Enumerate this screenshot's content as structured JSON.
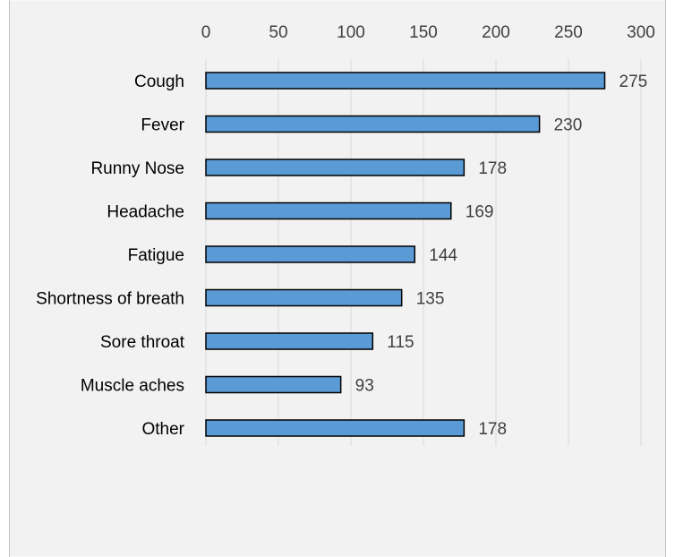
{
  "chart_data": {
    "type": "bar",
    "orientation": "horizontal",
    "title": "",
    "xlabel": "",
    "ylabel": "",
    "categories": [
      "Cough",
      "Fever",
      "Runny Nose",
      "Headache",
      "Fatigue",
      "Shortness of breath",
      "Sore throat",
      "Muscle aches",
      "Other"
    ],
    "values": [
      275,
      230,
      178,
      169,
      144,
      135,
      115,
      93,
      178
    ],
    "xlim": [
      0,
      300
    ],
    "x_ticks": [
      "0",
      "50",
      "100",
      "150",
      "200",
      "250",
      "300"
    ],
    "axis_position": "top",
    "grid": true,
    "legend": "none",
    "data_labels": [
      "275",
      "230",
      "178",
      "169",
      "144",
      "135",
      "115",
      "93",
      "178"
    ],
    "colors": {
      "bar_fill": "#5b9bd5",
      "bar_stroke": "#000000",
      "background": "#f2f2f2",
      "gridline": "#d9d9d9",
      "border": "#bfbfbf"
    }
  }
}
